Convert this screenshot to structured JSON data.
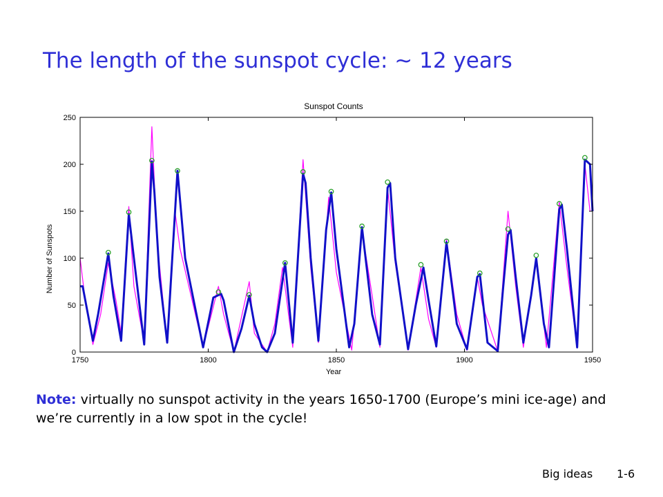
{
  "slide": {
    "title": "The length of the sunspot cycle: ~ 12 years",
    "note_label": "Note:",
    "note_text": " virtually no sunspot activity in the years 1650-1700 (Europe’s mini ice-age) and we’re currently in a low spot in the cycle!",
    "footer_section": "Big ideas",
    "footer_page": "1-6"
  },
  "colors": {
    "title": "#2f2fd6",
    "smoothed_line": "#1010c8",
    "monthly_line": "#ff00ff",
    "peak_marker": "#2aa02a"
  },
  "chart_data": {
    "type": "line",
    "title": "Sunspot Counts",
    "xlabel": "Year",
    "ylabel": "Number of Sunspots",
    "xlim": [
      1750,
      1950
    ],
    "ylim": [
      0,
      250
    ],
    "xticks": [
      1750,
      1800,
      1850,
      1900,
      1950
    ],
    "yticks": [
      0,
      50,
      100,
      150,
      200,
      250
    ],
    "grid": false,
    "legend": "none",
    "series": [
      {
        "role": "monthly",
        "color": "#ff00ff",
        "x": [
          1750,
          1752,
          1755,
          1758,
          1761,
          1764,
          1766,
          1769,
          1771,
          1775,
          1778,
          1780,
          1784,
          1787,
          1789,
          1798,
          1804,
          1806,
          1810,
          1816,
          1818,
          1823,
          1826,
          1829,
          1833,
          1837,
          1840,
          1843,
          1847,
          1850,
          1856,
          1860,
          1864,
          1867,
          1870,
          1873,
          1878,
          1883,
          1886,
          1889,
          1893,
          1897,
          1901,
          1905,
          1907,
          1913,
          1917,
          1920,
          1923,
          1928,
          1932,
          1937,
          1940,
          1944,
          1947,
          1949
        ],
        "y": [
          100,
          55,
          8,
          40,
          95,
          55,
          20,
          155,
          70,
          10,
          240,
          120,
          10,
          150,
          110,
          5,
          70,
          40,
          0,
          75,
          20,
          0,
          30,
          90,
          5,
          205,
          90,
          10,
          165,
          85,
          2,
          130,
          60,
          5,
          175,
          95,
          2,
          90,
          35,
          5,
          120,
          40,
          2,
          80,
          50,
          1,
          150,
          70,
          5,
          100,
          5,
          160,
          90,
          5,
          200,
          150
        ]
      },
      {
        "role": "smoothed",
        "color": "#1010c8",
        "x": [
          1750,
          1751,
          1755,
          1757,
          1761,
          1763,
          1766,
          1769,
          1771,
          1775,
          1778,
          1779,
          1781,
          1784,
          1788,
          1791,
          1798,
          1802,
          1805,
          1806,
          1810,
          1813,
          1816,
          1818,
          1821,
          1823,
          1826,
          1830,
          1833,
          1837,
          1838,
          1840,
          1843,
          1846,
          1848,
          1850,
          1855,
          1857,
          1860,
          1864,
          1867,
          1870,
          1871,
          1873,
          1878,
          1881,
          1884,
          1886,
          1889,
          1893,
          1897,
          1901,
          1905,
          1906,
          1909,
          1913,
          1915,
          1917,
          1918,
          1920,
          1923,
          1926,
          1928,
          1931,
          1933,
          1937,
          1938,
          1940,
          1944,
          1947,
          1949,
          1950
        ],
        "y": [
          70,
          70,
          12,
          40,
          105,
          60,
          12,
          147,
          100,
          8,
          203,
          170,
          80,
          10,
          193,
          100,
          5,
          58,
          62,
          55,
          0,
          25,
          60,
          30,
          5,
          0,
          20,
          95,
          10,
          190,
          180,
          100,
          12,
          130,
          170,
          110,
          5,
          30,
          133,
          40,
          8,
          175,
          180,
          100,
          3,
          50,
          90,
          55,
          6,
          117,
          30,
          3,
          80,
          83,
          10,
          1,
          65,
          125,
          130,
          80,
          10,
          60,
          100,
          30,
          5,
          152,
          157,
          110,
          5,
          205,
          200,
          150
        ]
      }
    ],
    "peaks": {
      "x": [
        1761,
        1769,
        1778,
        1788,
        1804,
        1816,
        1830,
        1837,
        1848,
        1860,
        1870,
        1883,
        1893,
        1906,
        1917,
        1928,
        1937,
        1947
      ],
      "y": [
        106,
        149,
        204,
        193,
        64,
        61,
        95,
        192,
        171,
        134,
        181,
        93,
        118,
        84,
        131,
        103,
        158,
        207
      ]
    }
  }
}
